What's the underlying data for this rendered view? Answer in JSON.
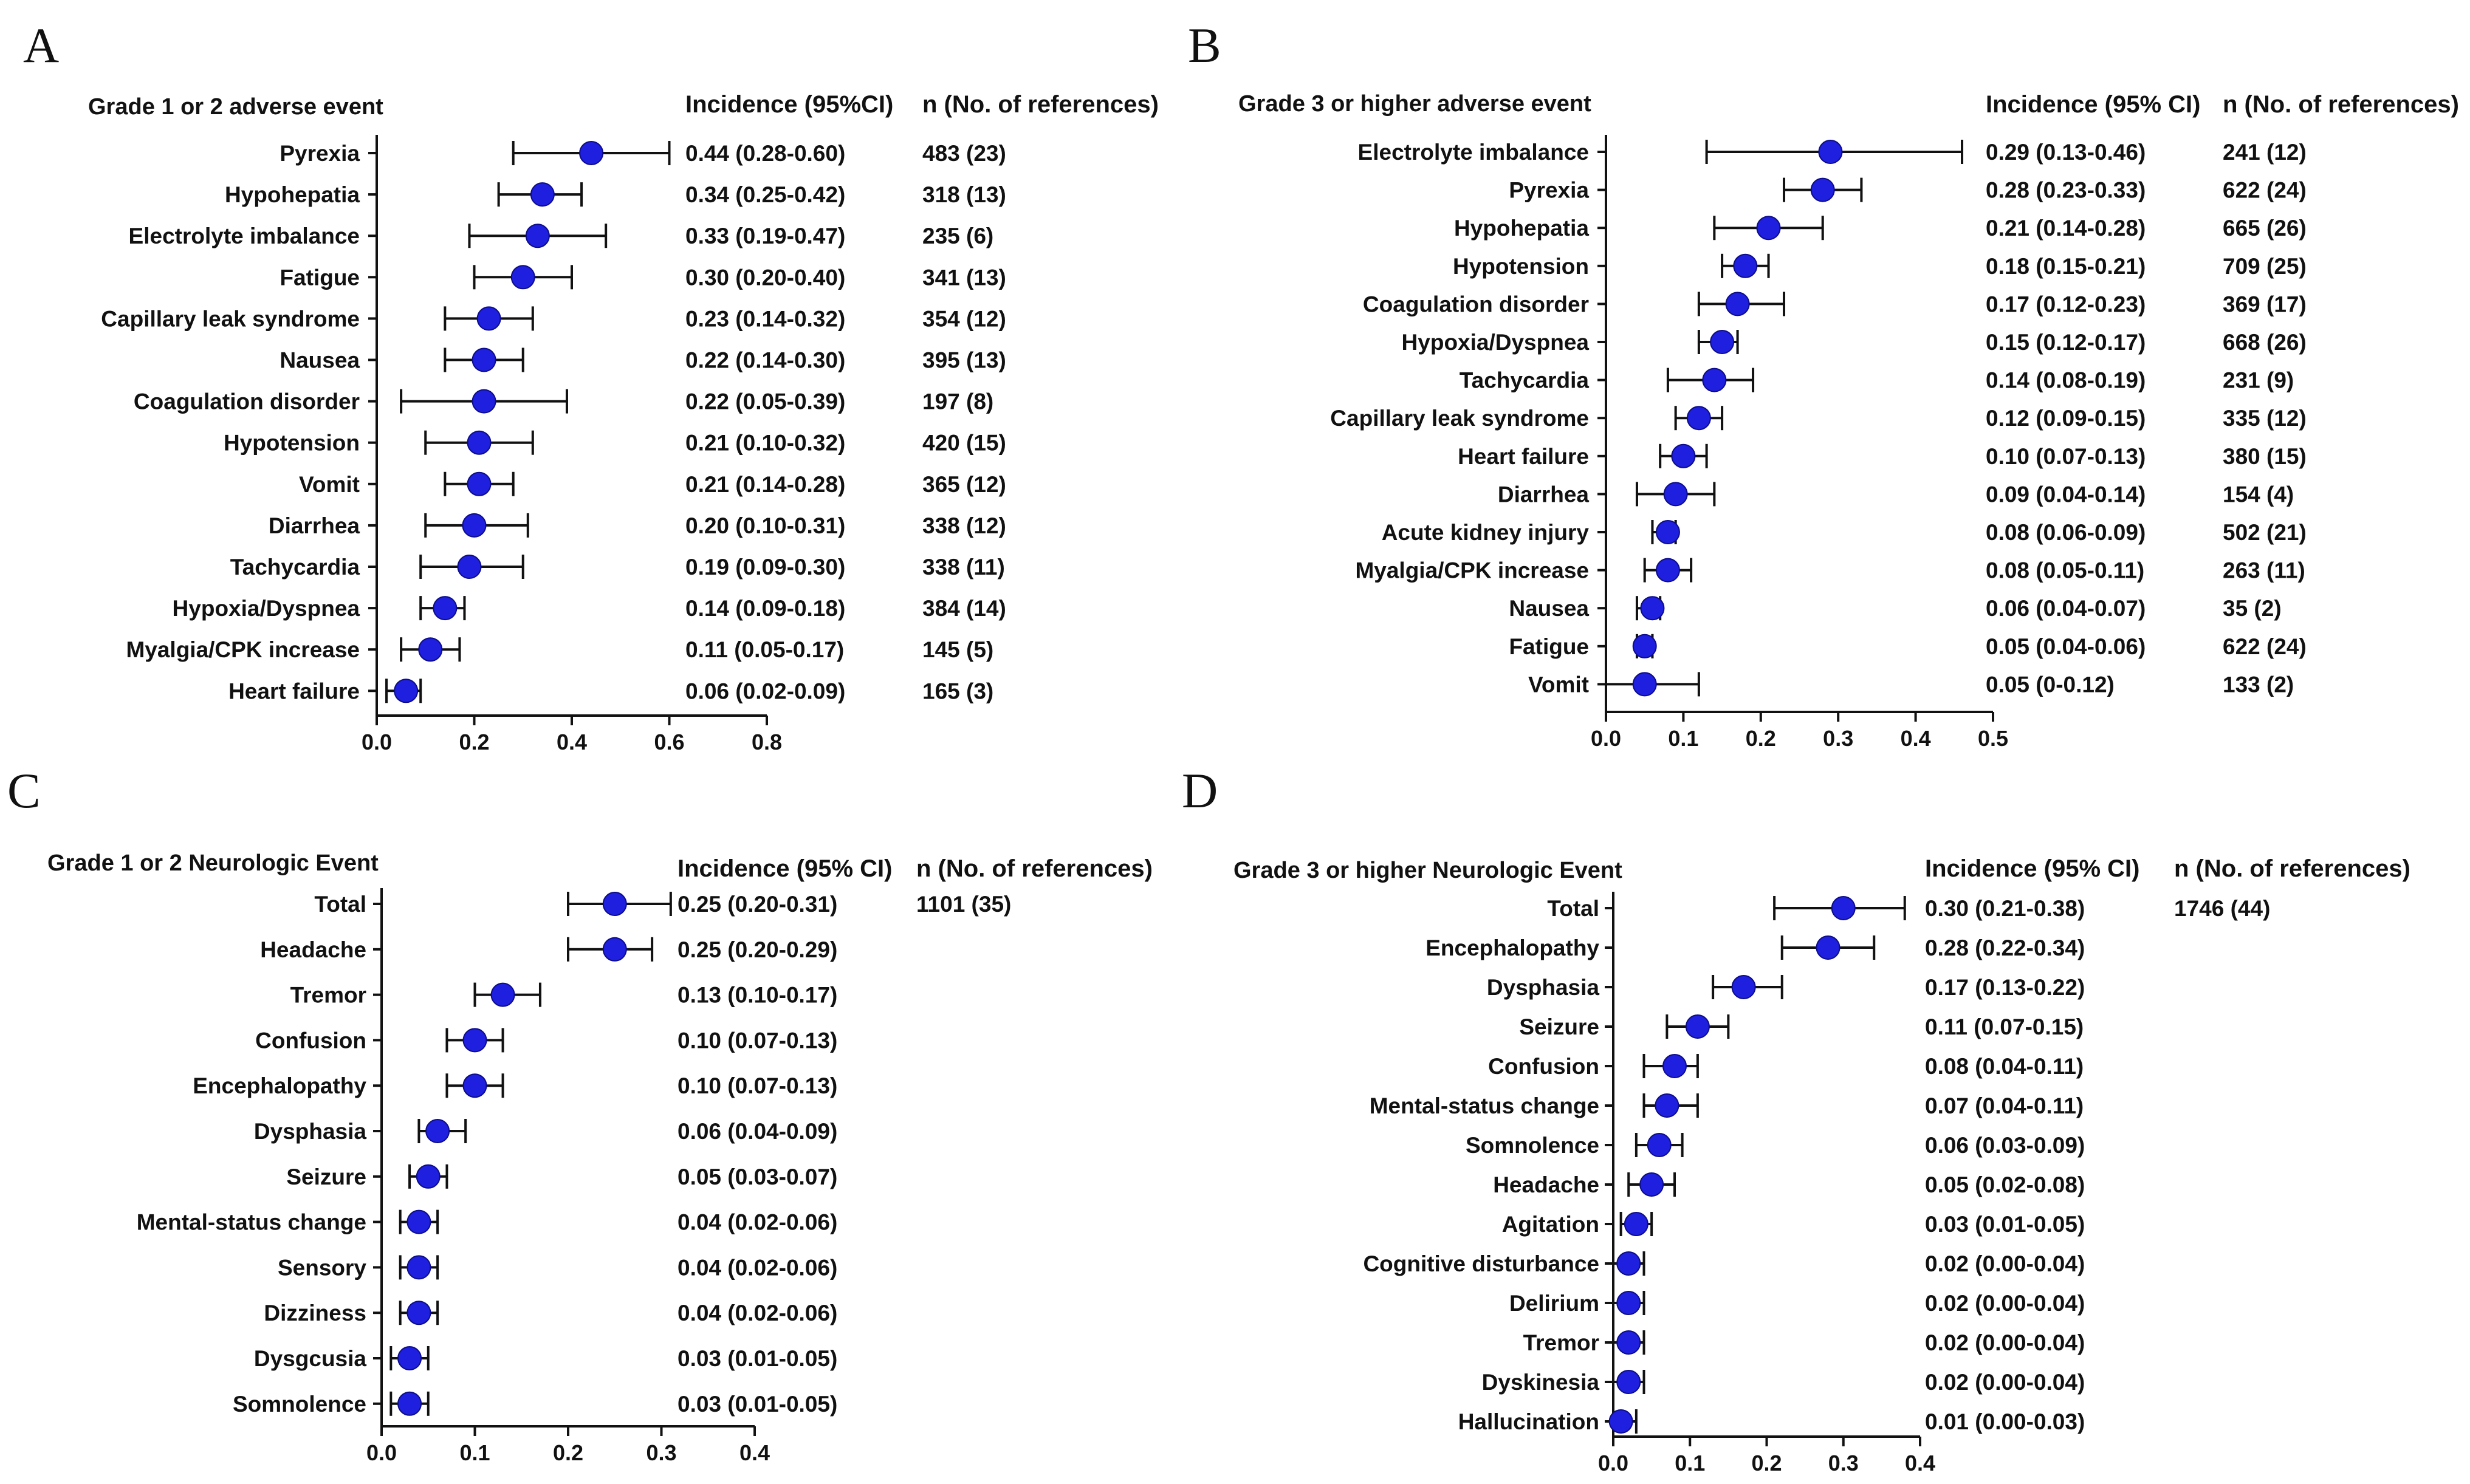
{
  "colors": {
    "marker": "#1f1fe0",
    "marker_edge": "#0c0c8a",
    "axis": "#111111",
    "background": "#ffffff"
  },
  "panels": {
    "A": {
      "letter": "A",
      "title": "Grade 1 or 2 adverse event",
      "incidence_header": "Incidence (95%CI)",
      "n_header": "n (No. of references)"
    },
    "B": {
      "letter": "B",
      "title": "Grade 3 or higher adverse event",
      "incidence_header": "Incidence (95% CI)",
      "n_header": "n (No. of references)"
    },
    "C": {
      "letter": "C",
      "title": "Grade 1 or 2 Neurologic Event",
      "incidence_header": "Incidence (95% CI)",
      "n_header": "n (No. of references)"
    },
    "D": {
      "letter": "D",
      "title": "Grade 3 or higher Neurologic Event",
      "incidence_header": "Incidence (95% CI)",
      "n_header": "n (No. of references)"
    }
  },
  "chart_data": [
    {
      "panel": "A",
      "type": "scatter",
      "subtype": "forest-plot",
      "title": "Grade 1 or 2 adverse event",
      "xlim": [
        0,
        0.8
      ],
      "xticks": [
        0.0,
        0.2,
        0.4,
        0.6,
        0.8
      ],
      "xtick_labels": [
        "0.0",
        "0.2",
        "0.4",
        "0.6",
        "0.8"
      ],
      "items": [
        {
          "label": "Pyrexia",
          "est": 0.44,
          "lo": 0.28,
          "hi": 0.6,
          "ci_text": "0.44 (0.28-0.60)",
          "n_text": "483 (23)"
        },
        {
          "label": "Hypohepatia",
          "est": 0.34,
          "lo": 0.25,
          "hi": 0.42,
          "ci_text": "0.34 (0.25-0.42)",
          "n_text": "318 (13)"
        },
        {
          "label": "Electrolyte imbalance",
          "est": 0.33,
          "lo": 0.19,
          "hi": 0.47,
          "ci_text": "0.33 (0.19-0.47)",
          "n_text": "235 (6)"
        },
        {
          "label": "Fatigue",
          "est": 0.3,
          "lo": 0.2,
          "hi": 0.4,
          "ci_text": "0.30 (0.20-0.40)",
          "n_text": "341 (13)"
        },
        {
          "label": "Capillary leak syndrome",
          "est": 0.23,
          "lo": 0.14,
          "hi": 0.32,
          "ci_text": "0.23 (0.14-0.32)",
          "n_text": "354 (12)"
        },
        {
          "label": "Nausea",
          "est": 0.22,
          "lo": 0.14,
          "hi": 0.3,
          "ci_text": "0.22 (0.14-0.30)",
          "n_text": "395 (13)"
        },
        {
          "label": "Coagulation disorder",
          "est": 0.22,
          "lo": 0.05,
          "hi": 0.39,
          "ci_text": "0.22 (0.05-0.39)",
          "n_text": "197 (8)"
        },
        {
          "label": "Hypotension",
          "est": 0.21,
          "lo": 0.1,
          "hi": 0.32,
          "ci_text": "0.21 (0.10-0.32)",
          "n_text": "420 (15)"
        },
        {
          "label": "Vomit",
          "est": 0.21,
          "lo": 0.14,
          "hi": 0.28,
          "ci_text": "0.21 (0.14-0.28)",
          "n_text": "365 (12)"
        },
        {
          "label": "Diarrhea",
          "est": 0.2,
          "lo": 0.1,
          "hi": 0.31,
          "ci_text": "0.20 (0.10-0.31)",
          "n_text": "338 (12)"
        },
        {
          "label": "Tachycardia",
          "est": 0.19,
          "lo": 0.09,
          "hi": 0.3,
          "ci_text": "0.19 (0.09-0.30)",
          "n_text": "338 (11)"
        },
        {
          "label": "Hypoxia/Dyspnea",
          "est": 0.14,
          "lo": 0.09,
          "hi": 0.18,
          "ci_text": "0.14 (0.09-0.18)",
          "n_text": "384 (14)"
        },
        {
          "label": "Myalgia/CPK increase",
          "est": 0.11,
          "lo": 0.05,
          "hi": 0.17,
          "ci_text": "0.11 (0.05-0.17)",
          "n_text": "145 (5)"
        },
        {
          "label": "Heart failure",
          "est": 0.06,
          "lo": 0.02,
          "hi": 0.09,
          "ci_text": "0.06 (0.02-0.09)",
          "n_text": "165 (3)"
        }
      ]
    },
    {
      "panel": "B",
      "type": "scatter",
      "subtype": "forest-plot",
      "title": "Grade 3 or higher adverse event",
      "xlim": [
        0,
        0.5
      ],
      "xticks": [
        0.0,
        0.1,
        0.2,
        0.3,
        0.4,
        0.5
      ],
      "xtick_labels": [
        "0.0",
        "0.1",
        "0.2",
        "0.3",
        "0.4",
        "0.5"
      ],
      "items": [
        {
          "label": "Electrolyte imbalance",
          "est": 0.29,
          "lo": 0.13,
          "hi": 0.46,
          "ci_text": "0.29 (0.13-0.46)",
          "n_text": "241 (12)"
        },
        {
          "label": "Pyrexia",
          "est": 0.28,
          "lo": 0.23,
          "hi": 0.33,
          "ci_text": "0.28 (0.23-0.33)",
          "n_text": "622 (24)"
        },
        {
          "label": "Hypohepatia",
          "est": 0.21,
          "lo": 0.14,
          "hi": 0.28,
          "ci_text": "0.21 (0.14-0.28)",
          "n_text": "665 (26)"
        },
        {
          "label": "Hypotension",
          "est": 0.18,
          "lo": 0.15,
          "hi": 0.21,
          "ci_text": "0.18 (0.15-0.21)",
          "n_text": "709 (25)"
        },
        {
          "label": "Coagulation disorder",
          "est": 0.17,
          "lo": 0.12,
          "hi": 0.23,
          "ci_text": "0.17 (0.12-0.23)",
          "n_text": "369 (17)"
        },
        {
          "label": "Hypoxia/Dyspnea",
          "est": 0.15,
          "lo": 0.12,
          "hi": 0.17,
          "ci_text": "0.15 (0.12-0.17)",
          "n_text": "668 (26)"
        },
        {
          "label": "Tachycardia",
          "est": 0.14,
          "lo": 0.08,
          "hi": 0.19,
          "ci_text": "0.14 (0.08-0.19)",
          "n_text": "231 (9)"
        },
        {
          "label": "Capillary leak syndrome",
          "est": 0.12,
          "lo": 0.09,
          "hi": 0.15,
          "ci_text": "0.12 (0.09-0.15)",
          "n_text": "335 (12)"
        },
        {
          "label": "Heart failure",
          "est": 0.1,
          "lo": 0.07,
          "hi": 0.13,
          "ci_text": "0.10 (0.07-0.13)",
          "n_text": "380 (15)"
        },
        {
          "label": "Diarrhea",
          "est": 0.09,
          "lo": 0.04,
          "hi": 0.14,
          "ci_text": "0.09 (0.04-0.14)",
          "n_text": "154 (4)"
        },
        {
          "label": "Acute kidney injury",
          "est": 0.08,
          "lo": 0.06,
          "hi": 0.09,
          "ci_text": "0.08 (0.06-0.09)",
          "n_text": "502 (21)"
        },
        {
          "label": "Myalgia/CPK increase",
          "est": 0.08,
          "lo": 0.05,
          "hi": 0.11,
          "ci_text": "0.08 (0.05-0.11)",
          "n_text": "263 (11)"
        },
        {
          "label": "Nausea",
          "est": 0.06,
          "lo": 0.04,
          "hi": 0.07,
          "ci_text": "0.06 (0.04-0.07)",
          "n_text": "35 (2)"
        },
        {
          "label": "Fatigue",
          "est": 0.05,
          "lo": 0.04,
          "hi": 0.06,
          "ci_text": "0.05 (0.04-0.06)",
          "n_text": "622 (24)"
        },
        {
          "label": "Vomit",
          "est": 0.05,
          "lo": 0.0,
          "hi": 0.12,
          "ci_text": "0.05 (0-0.12)",
          "n_text": "133 (2)"
        }
      ]
    },
    {
      "panel": "C",
      "type": "scatter",
      "subtype": "forest-plot",
      "title": "Grade 1 or 2 Neurologic Event",
      "xlim": [
        0,
        0.4
      ],
      "xticks": [
        0.0,
        0.1,
        0.2,
        0.3,
        0.4
      ],
      "xtick_labels": [
        "0.0",
        "0.1",
        "0.2",
        "0.3",
        "0.4"
      ],
      "items": [
        {
          "label": "Total",
          "est": 0.25,
          "lo": 0.2,
          "hi": 0.31,
          "ci_text": "0.25 (0.20-0.31)",
          "n_text": "1101 (35)"
        },
        {
          "label": "Headache",
          "est": 0.25,
          "lo": 0.2,
          "hi": 0.29,
          "ci_text": "0.25 (0.20-0.29)",
          "n_text": ""
        },
        {
          "label": "Tremor",
          "est": 0.13,
          "lo": 0.1,
          "hi": 0.17,
          "ci_text": "0.13 (0.10-0.17)",
          "n_text": ""
        },
        {
          "label": "Confusion",
          "est": 0.1,
          "lo": 0.07,
          "hi": 0.13,
          "ci_text": "0.10 (0.07-0.13)",
          "n_text": ""
        },
        {
          "label": "Encephalopathy",
          "est": 0.1,
          "lo": 0.07,
          "hi": 0.13,
          "ci_text": "0.10 (0.07-0.13)",
          "n_text": ""
        },
        {
          "label": "Dysphasia",
          "est": 0.06,
          "lo": 0.04,
          "hi": 0.09,
          "ci_text": "0.06 (0.04-0.09)",
          "n_text": ""
        },
        {
          "label": "Seizure",
          "est": 0.05,
          "lo": 0.03,
          "hi": 0.07,
          "ci_text": "0.05 (0.03-0.07)",
          "n_text": ""
        },
        {
          "label": "Mental-status change",
          "est": 0.04,
          "lo": 0.02,
          "hi": 0.06,
          "ci_text": "0.04 (0.02-0.06)",
          "n_text": ""
        },
        {
          "label": "Sensory",
          "est": 0.04,
          "lo": 0.02,
          "hi": 0.06,
          "ci_text": "0.04 (0.02-0.06)",
          "n_text": ""
        },
        {
          "label": "Dizziness",
          "est": 0.04,
          "lo": 0.02,
          "hi": 0.06,
          "ci_text": "0.04 (0.02-0.06)",
          "n_text": ""
        },
        {
          "label": "Dysgcusia",
          "est": 0.03,
          "lo": 0.01,
          "hi": 0.05,
          "ci_text": "0.03 (0.01-0.05)",
          "n_text": ""
        },
        {
          "label": "Somnolence",
          "est": 0.03,
          "lo": 0.01,
          "hi": 0.05,
          "ci_text": "0.03 (0.01-0.05)",
          "n_text": ""
        }
      ]
    },
    {
      "panel": "D",
      "type": "scatter",
      "subtype": "forest-plot",
      "title": "Grade 3 or higher Neurologic Event",
      "xlim": [
        0,
        0.4
      ],
      "xticks": [
        0.0,
        0.1,
        0.2,
        0.3,
        0.4
      ],
      "xtick_labels": [
        "0.0",
        "0.1",
        "0.2",
        "0.3",
        "0.4"
      ],
      "items": [
        {
          "label": "Total",
          "est": 0.3,
          "lo": 0.21,
          "hi": 0.38,
          "ci_text": "0.30 (0.21-0.38)",
          "n_text": "1746 (44)"
        },
        {
          "label": "Encephalopathy",
          "est": 0.28,
          "lo": 0.22,
          "hi": 0.34,
          "ci_text": "0.28 (0.22-0.34)",
          "n_text": ""
        },
        {
          "label": "Dysphasia",
          "est": 0.17,
          "lo": 0.13,
          "hi": 0.22,
          "ci_text": "0.17 (0.13-0.22)",
          "n_text": ""
        },
        {
          "label": "Seizure",
          "est": 0.11,
          "lo": 0.07,
          "hi": 0.15,
          "ci_text": "0.11 (0.07-0.15)",
          "n_text": ""
        },
        {
          "label": "Confusion",
          "est": 0.08,
          "lo": 0.04,
          "hi": 0.11,
          "ci_text": "0.08 (0.04-0.11)",
          "n_text": ""
        },
        {
          "label": "Mental-status change",
          "est": 0.07,
          "lo": 0.04,
          "hi": 0.11,
          "ci_text": "0.07 (0.04-0.11)",
          "n_text": ""
        },
        {
          "label": "Somnolence",
          "est": 0.06,
          "lo": 0.03,
          "hi": 0.09,
          "ci_text": "0.06 (0.03-0.09)",
          "n_text": ""
        },
        {
          "label": "Headache",
          "est": 0.05,
          "lo": 0.02,
          "hi": 0.08,
          "ci_text": "0.05 (0.02-0.08)",
          "n_text": ""
        },
        {
          "label": "Agitation",
          "est": 0.03,
          "lo": 0.01,
          "hi": 0.05,
          "ci_text": "0.03 (0.01-0.05)",
          "n_text": ""
        },
        {
          "label": "Cognitive disturbance",
          "est": 0.02,
          "lo": 0.0,
          "hi": 0.04,
          "ci_text": "0.02 (0.00-0.04)",
          "n_text": ""
        },
        {
          "label": "Delirium",
          "est": 0.02,
          "lo": 0.0,
          "hi": 0.04,
          "ci_text": "0.02 (0.00-0.04)",
          "n_text": ""
        },
        {
          "label": "Tremor",
          "est": 0.02,
          "lo": 0.0,
          "hi": 0.04,
          "ci_text": "0.02 (0.00-0.04)",
          "n_text": ""
        },
        {
          "label": "Dyskinesia",
          "est": 0.02,
          "lo": 0.0,
          "hi": 0.04,
          "ci_text": "0.02 (0.00-0.04)",
          "n_text": ""
        },
        {
          "label": "Hallucination",
          "est": 0.01,
          "lo": 0.0,
          "hi": 0.03,
          "ci_text": "0.01 (0.00-0.03)",
          "n_text": ""
        }
      ]
    }
  ]
}
